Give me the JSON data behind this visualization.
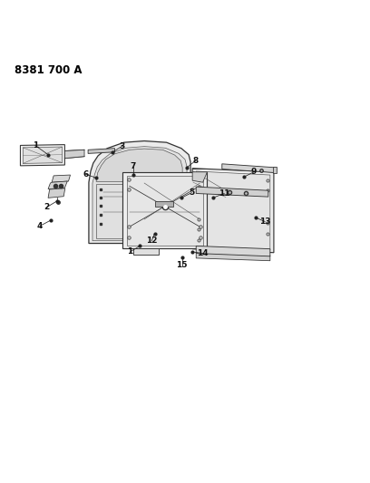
{
  "title": "8381 700 A",
  "bg_color": "#ffffff",
  "line_color": "#555555",
  "dark_line": "#333333",
  "fill_light": "#e8e8e8",
  "fill_mid": "#d4d4d4",
  "fill_dark": "#c0c0c0",
  "font_size": 6.5,
  "title_font_size": 8.5,
  "lw": 0.7,
  "callouts": [
    {
      "label": "1",
      "dot": [
        0.13,
        0.735
      ],
      "txt": [
        0.095,
        0.76
      ]
    },
    {
      "label": "2",
      "dot": [
        0.155,
        0.61
      ],
      "txt": [
        0.125,
        0.592
      ]
    },
    {
      "label": "3",
      "dot": [
        0.305,
        0.742
      ],
      "txt": [
        0.33,
        0.758
      ]
    },
    {
      "label": "4",
      "dot": [
        0.138,
        0.558
      ],
      "txt": [
        0.108,
        0.542
      ]
    },
    {
      "label": "5",
      "dot": [
        0.49,
        0.618
      ],
      "txt": [
        0.518,
        0.632
      ]
    },
    {
      "label": "6",
      "dot": [
        0.26,
        0.672
      ],
      "txt": [
        0.232,
        0.682
      ]
    },
    {
      "label": "7",
      "dot": [
        0.36,
        0.68
      ],
      "txt": [
        0.36,
        0.703
      ]
    },
    {
      "label": "8",
      "dot": [
        0.505,
        0.7
      ],
      "txt": [
        0.528,
        0.718
      ]
    },
    {
      "label": "9",
      "dot": [
        0.66,
        0.675
      ],
      "txt": [
        0.686,
        0.688
      ]
    },
    {
      "label": "11",
      "dot": [
        0.575,
        0.618
      ],
      "txt": [
        0.606,
        0.63
      ]
    },
    {
      "label": "12",
      "dot": [
        0.418,
        0.522
      ],
      "txt": [
        0.41,
        0.502
      ]
    },
    {
      "label": "13",
      "dot": [
        0.69,
        0.565
      ],
      "txt": [
        0.716,
        0.554
      ]
    },
    {
      "label": "14",
      "dot": [
        0.52,
        0.472
      ],
      "txt": [
        0.548,
        0.468
      ]
    },
    {
      "label": "15",
      "dot": [
        0.492,
        0.456
      ],
      "txt": [
        0.492,
        0.436
      ]
    },
    {
      "label": "1",
      "dot": [
        0.378,
        0.488
      ],
      "txt": [
        0.352,
        0.472
      ]
    }
  ]
}
